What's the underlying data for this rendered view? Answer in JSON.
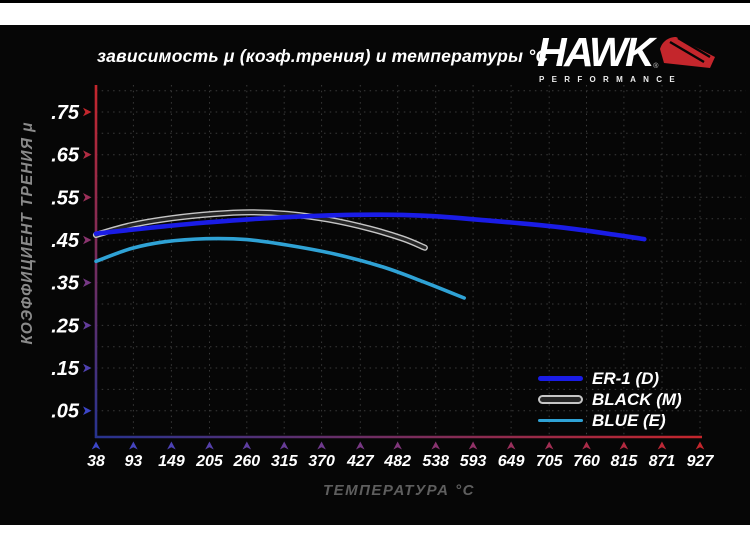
{
  "header": {
    "title": "зависимость μ (коэф.трения) и температуры °C",
    "logo": {
      "brand": "HAWK",
      "reg": "®",
      "subtitle": "PERFORMANCE"
    }
  },
  "chart_data": {
    "type": "line",
    "title": "зависимость μ (коэф.трения) и температуры °C",
    "xlabel": "ТЕМПЕРАТУРА °C",
    "ylabel": "КОЭФФИЦИЕНТ ТРЕНИЯ μ",
    "xlim": [
      38,
      927
    ],
    "ylim": [
      0,
      0.8
    ],
    "x_ticks": [
      38,
      93,
      149,
      205,
      260,
      315,
      370,
      427,
      482,
      538,
      593,
      649,
      705,
      760,
      815,
      871,
      927
    ],
    "y_tick_labels": [
      ".75",
      ".65",
      ".55",
      ".45",
      ".35",
      ".25",
      ".15",
      ".05"
    ],
    "y_tick_values": [
      0.75,
      0.65,
      0.55,
      0.45,
      0.35,
      0.25,
      0.15,
      0.05
    ],
    "grid": {
      "style": "dotted",
      "x_every_tick": true,
      "y_step": 0.05
    },
    "legend_position": "bottom-right",
    "series": [
      {
        "name": "ER-1 (D)",
        "color": "#1a1ce6",
        "line_style": "solid",
        "x": [
          38,
          120,
          200,
          300,
          420,
          520,
          620,
          720,
          800,
          845
        ],
        "y": [
          0.465,
          0.479,
          0.491,
          0.502,
          0.509,
          0.507,
          0.495,
          0.48,
          0.463,
          0.452
        ]
      },
      {
        "name": "BLACK (M)",
        "color": "#262626",
        "outline_color": "#c6c6c6",
        "line_style": "outlined",
        "x": [
          38,
          90,
          150,
          210,
          265,
          320,
          380,
          440,
          490,
          522
        ],
        "y": [
          0.462,
          0.485,
          0.501,
          0.511,
          0.515,
          0.511,
          0.498,
          0.477,
          0.453,
          0.432
        ]
      },
      {
        "name": "BLUE (E)",
        "color": "#2fa2d5",
        "line_style": "solid",
        "x": [
          38,
          90,
          140,
          200,
          260,
          320,
          390,
          460,
          520,
          580
        ],
        "y": [
          0.4,
          0.43,
          0.446,
          0.453,
          0.451,
          0.438,
          0.417,
          0.387,
          0.352,
          0.314
        ]
      }
    ]
  },
  "colors": {
    "panel_background": "#060606",
    "axis_red": "#c4262c",
    "axis_blue": "#27338f",
    "tick_arrow_blue": "#3c46c8",
    "grid": "#3a3a3a",
    "tick_label": "#ffffff",
    "axis_title_gray": "#8a8a8a",
    "logo_red": "#c4262c"
  }
}
